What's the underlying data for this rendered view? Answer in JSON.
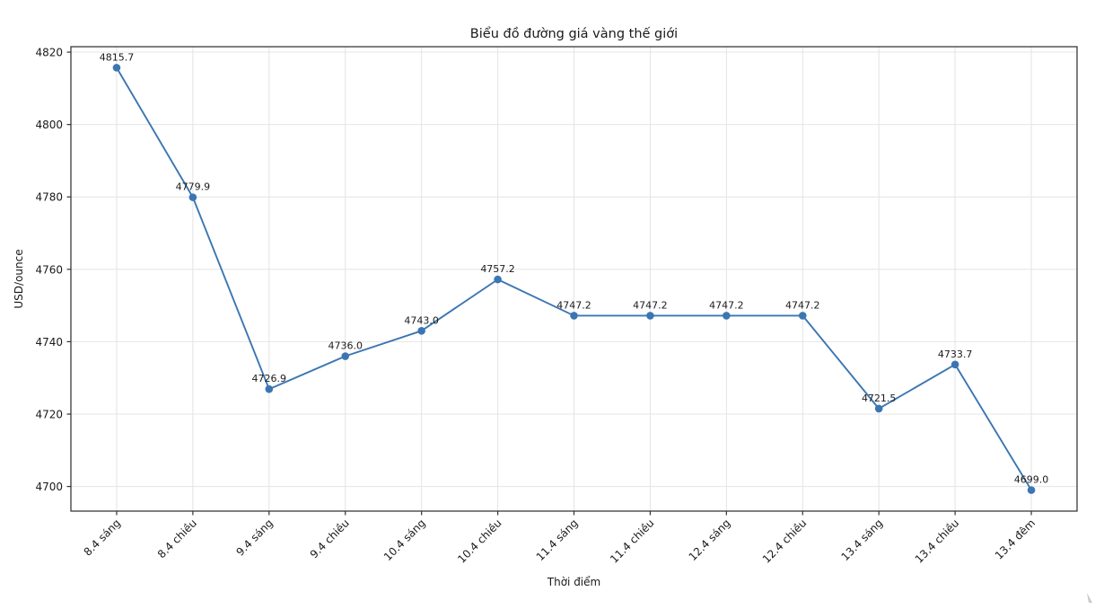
{
  "chart_data": {
    "type": "line",
    "title": "Biểu đồ đường giá vàng thế giới",
    "xlabel": "Thời điểm",
    "ylabel": "USD/ounce",
    "categories": [
      "8.4 sáng",
      "8.4 chiều",
      "9.4 sáng",
      "9.4 chiều",
      "10.4 sáng",
      "10.4 chiều",
      "11.4 sáng",
      "11.4 chiều",
      "12.4 sáng",
      "12.4 chiều",
      "13.4 sáng",
      "13.4 chiều",
      "13.4 đêm"
    ],
    "values": [
      4815.7,
      4779.9,
      4726.9,
      4736.0,
      4743.0,
      4757.2,
      4747.2,
      4747.2,
      4747.2,
      4747.2,
      4721.5,
      4733.7,
      4699.0
    ],
    "point_labels": [
      "4815.7",
      "4779.9",
      "4726.9",
      "4736.0",
      "4743.0",
      "4757.2",
      "4747.2",
      "4747.2",
      "4747.2",
      "4747.2",
      "4721.5",
      "4733.7",
      "4699.0"
    ],
    "yticks": [
      4700,
      4720,
      4740,
      4760,
      4780,
      4800,
      4820
    ],
    "ylim": [
      4693.2,
      4821.5
    ],
    "xlim": [
      -0.6,
      12.6
    ],
    "grid": true,
    "legend_position": "none",
    "colors": {
      "line": "#3b76b2",
      "marker": "#3b76b2",
      "grid": "#e4e4e4",
      "spine": "#3a3a3a",
      "tick": "#333333",
      "text": "#1a1a1a",
      "background": "#ffffff"
    }
  }
}
